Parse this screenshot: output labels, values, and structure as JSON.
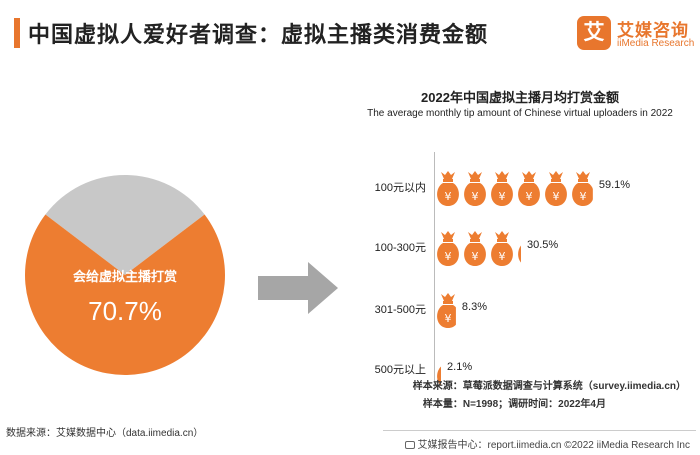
{
  "header": {
    "title": "中国虚拟人爱好者调查：虚拟主播类消费金额",
    "accent_color": "#e8762d"
  },
  "logo": {
    "mark": "艾",
    "name": "艾媒咨询",
    "sub": "iiMedia Research"
  },
  "pie": {
    "label": "会给虚拟主播打赏",
    "value_text": "70.7%",
    "value": 70.7,
    "colors": {
      "main": "#ed7d31",
      "rest": "#c8c8c8"
    }
  },
  "chart_data": {
    "type": "bar",
    "title": "2022年中国虚拟主播月均打赏金额",
    "subtitle": "The average monthly tip amount of Chinese virtual uploaders in 2022",
    "categories": [
      "100元以内",
      "100-300元",
      "301-500元",
      "500元以上"
    ],
    "values": [
      59.1,
      30.5,
      8.3,
      2.1
    ],
    "value_labels": [
      "59.1%",
      "30.5%",
      "8.3%",
      "2.1%"
    ],
    "units_per_icon": 10,
    "icon": "money-bag-icon",
    "bar_color": "#ed7d31"
  },
  "notes": {
    "sample_source": "样本来源：草莓派数据调查与计算系统（survey.iimedia.cn）",
    "sample_size": "样本量：N=1998；调研时间：2022年4月"
  },
  "footer": {
    "data_source": "数据来源：艾媒数据中心（data.iimedia.cn）",
    "copyright": "艾媒报告中心：report.iimedia.cn  ©2022 iiMedia Research Inc"
  }
}
